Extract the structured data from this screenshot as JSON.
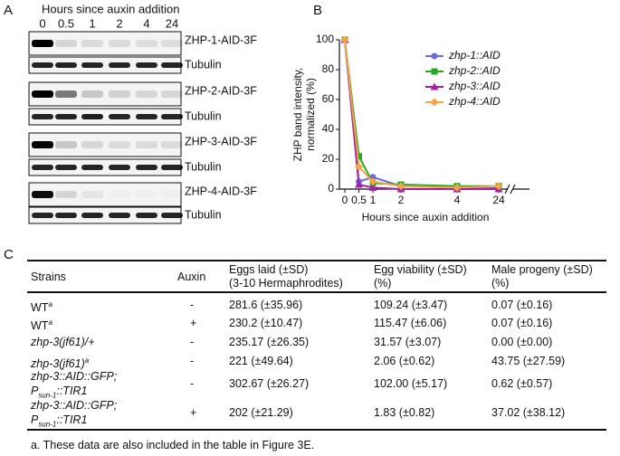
{
  "panel_labels": [
    "A",
    "B",
    "C"
  ],
  "blot": {
    "title": "Hours since auxin addition",
    "lanes": [
      "0",
      "0.5",
      "1",
      "2",
      "4",
      "24"
    ],
    "rows": [
      "ZHP-1-AID-3F",
      "Tubulin",
      "ZHP-2-AID-3F",
      "Tubulin",
      "ZHP-3-AID-3F",
      "Tubulin",
      "ZHP-4-AID-3F",
      "Tubulin"
    ]
  },
  "chart_data": {
    "type": "line",
    "y_label": [
      "ZHP band intensity,",
      "normalized (%)"
    ],
    "x_label": "Hours since auxin addition",
    "x": [
      0,
      0.5,
      1,
      2,
      4,
      24
    ],
    "xlim": [
      0,
      24
    ],
    "xticks": [
      0,
      0.5,
      1,
      2,
      4,
      24
    ],
    "x_break": true,
    "ylim": [
      0,
      100
    ],
    "yticks": [
      0,
      20,
      40,
      60,
      80,
      100
    ],
    "legend": "upper right",
    "series": [
      {
        "name": "zhp-1::AID",
        "color": "#6a6ae0",
        "marker": "circle",
        "values": [
          100,
          5,
          8,
          2,
          1,
          1
        ]
      },
      {
        "name": "zhp-2::AID",
        "color": "#22aa22",
        "marker": "square",
        "values": [
          100,
          22,
          4,
          3,
          2,
          2
        ]
      },
      {
        "name": "zhp-3::AID",
        "color": "#a21fa6",
        "marker": "triangle",
        "values": [
          100,
          3,
          1,
          0,
          0,
          0
        ]
      },
      {
        "name": "zhp-4::AID",
        "color": "#f5a445",
        "marker": "diamond",
        "values": [
          100,
          15,
          5,
          2,
          1,
          2
        ]
      }
    ]
  },
  "table": {
    "columns": [
      [
        "Strains"
      ],
      [
        "Auxin"
      ],
      [
        "Eggs laid (±SD)",
        "(3-10 Hermaphrodites)"
      ],
      [
        "Egg viability (±SD)",
        "(%)"
      ],
      [
        "Male progeny (±SD)",
        "(%)"
      ]
    ],
    "rows": [
      [
        [
          [
            {
              "text": "WT"
            },
            {
              "text": "a",
              "style": "sup"
            }
          ]
        ],
        "-",
        "281.6 (±35.96)",
        "109.24 (±3.47)",
        "0.07 (±0.16)"
      ],
      [
        [
          [
            {
              "text": "WT"
            },
            {
              "text": "a",
              "style": "sup"
            }
          ]
        ],
        "+",
        "230.2 (±10.47)",
        "115.47 (±6.06)",
        "0.07 (±0.16)"
      ],
      [
        [
          [
            {
              "text": "zhp-3(jf61)/+",
              "style": "italic"
            }
          ]
        ],
        "-",
        "235.17 (±26.35)",
        "31.57 (±3.07)",
        "0.00 (±0.00)"
      ],
      [
        [
          [
            {
              "text": "zhp-3(jf61)",
              "style": "italic"
            },
            {
              "text": "a",
              "style": "sup"
            }
          ]
        ],
        "-",
        "221 (±49.64)",
        "2.06 (±0.62)",
        "43.75 (±27.59)"
      ],
      [
        [
          [
            {
              "text": "zhp-3::AID::GFP;",
              "style": "italic"
            }
          ],
          [
            {
              "text": "P",
              "style": "italic"
            },
            {
              "text": "sun-1",
              "style": "sub"
            },
            {
              "text": "::TIR1",
              "style": "italic"
            }
          ]
        ],
        "-",
        "302.67 (±26.27)",
        "102.00 (±5.17)",
        "0.62 (±0.57)"
      ],
      [
        [
          [
            {
              "text": "zhp-3::AID::GFP;",
              "style": "italic"
            }
          ],
          [
            {
              "text": "P",
              "style": "italic"
            },
            {
              "text": "sun-1",
              "style": "sub"
            },
            {
              "text": "::TIR1",
              "style": "italic"
            }
          ]
        ],
        "+",
        "202 (±21.29)",
        "1.83 (±0.82)",
        "37.02 (±38.12)"
      ]
    ],
    "footnote": "a. These data are also included in the table in Figure 3E."
  }
}
